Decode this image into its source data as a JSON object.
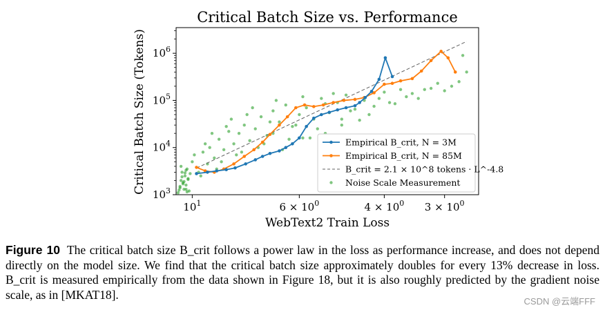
{
  "chart_data": {
    "type": "scatter",
    "title": "Critical Batch Size vs. Performance",
    "xlabel": "WebText2 Train Loss",
    "ylabel": "Critical Batch Size (Tokens)",
    "x_scale": "reciprocal-log",
    "y_scale": "log",
    "xlim": [
      10.8,
      2.55
    ],
    "ylim": [
      1000,
      3500000
    ],
    "x_ticks": [
      {
        "value": 10,
        "label": "10^1"
      },
      {
        "value": 6,
        "label": "6 × 10^0"
      },
      {
        "value": 4,
        "label": "4 × 10^0"
      },
      {
        "value": 3,
        "label": "3 × 10^0"
      }
    ],
    "y_ticks": [
      {
        "value": 1000,
        "label": "10^3"
      },
      {
        "value": 10000,
        "label": "10^4"
      },
      {
        "value": 100000,
        "label": "10^5"
      },
      {
        "value": 1000000,
        "label": "10^6"
      }
    ],
    "grid": false,
    "legend_position": "lower-right",
    "series": [
      {
        "name": "Empirical B_crit, N = 3M",
        "style": "line-dots",
        "color": "#1f77b4",
        "x": [
          9.8,
          9.3,
          8.9,
          8.5,
          8.15,
          7.75,
          7.4,
          7.15,
          6.9,
          6.6,
          6.4,
          6.2,
          6.0,
          5.8,
          5.6,
          5.4,
          5.2,
          5.0,
          4.8,
          4.6,
          4.5,
          4.38,
          4.25,
          4.1,
          3.98,
          3.85
        ],
        "y": [
          2800,
          3000,
          3200,
          3400,
          3700,
          4500,
          5500,
          6500,
          7500,
          8500,
          10000,
          12000,
          16000,
          28000,
          42000,
          50000,
          56000,
          63000,
          70000,
          77000,
          90000,
          115000,
          155000,
          280000,
          800000,
          320000
        ]
      },
      {
        "name": "Empirical B_crit, N = 85M",
        "style": "line-dots",
        "color": "#ff7f0e",
        "x": [
          9.8,
          9.4,
          9.0,
          8.6,
          8.2,
          7.8,
          7.45,
          7.15,
          6.9,
          6.6,
          6.35,
          6.1,
          5.85,
          5.6,
          5.35,
          5.1,
          4.85,
          4.6,
          4.4,
          4.2,
          4.0,
          3.85,
          3.7,
          3.5,
          3.35,
          3.2,
          3.05,
          2.95,
          2.85
        ],
        "y": [
          3800,
          3200,
          3000,
          3500,
          4500,
          6500,
          9000,
          13000,
          19000,
          30000,
          45000,
          70000,
          80000,
          74000,
          80000,
          90000,
          100000,
          105000,
          115000,
          145000,
          220000,
          230000,
          260000,
          290000,
          420000,
          700000,
          1100000,
          800000,
          400000
        ]
      },
      {
        "name": "B_crit = 2.1 × 10^8 tokens · L^-4.8",
        "style": "dashed",
        "color": "#606060",
        "fit": {
          "coefficient": 210000000,
          "exponent": -4.8
        }
      },
      {
        "name": "Noise Scale Measurement",
        "style": "scatter",
        "color": "#2ca02c",
        "x": [
          10.7,
          10.6,
          10.55,
          10.5,
          10.45,
          10.4,
          10.35,
          10.3,
          10.25,
          10.2,
          10.15,
          10.1,
          10.6,
          10.5,
          10.4,
          10.3,
          10.2,
          10.55,
          10.45,
          10.35,
          10.25,
          10.65,
          10.3,
          10.0,
          9.9,
          9.7,
          9.5,
          9.3,
          9.2,
          9.0,
          8.8,
          8.6,
          8.4,
          8.2,
          8.0,
          7.8,
          7.6,
          7.4,
          7.2,
          7.0,
          6.8,
          6.6,
          6.4,
          6.2,
          6.0,
          5.8,
          5.6,
          5.4,
          5.2,
          5.0,
          4.8,
          4.6,
          4.4,
          4.2,
          4.0,
          3.8,
          3.6,
          3.4,
          3.2,
          3.0,
          2.9,
          2.8,
          2.7,
          9.6,
          9.1,
          8.7,
          8.3,
          7.9,
          7.5,
          7.1,
          6.7,
          6.3,
          5.9,
          5.5,
          5.1,
          4.7,
          4.3,
          3.9,
          3.5,
          3.1,
          9.4,
          8.9,
          8.5,
          8.1,
          7.7,
          7.3,
          6.9,
          6.5,
          6.1,
          5.7,
          5.3,
          4.9,
          4.5,
          4.1,
          3.7,
          3.3,
          2.75,
          6.8,
          5.9,
          5.3,
          4.9
        ],
        "y": [
          1100,
          1400,
          2000,
          3000,
          1800,
          1300,
          2500,
          1600,
          3500,
          2200,
          1200,
          2800,
          1500,
          2400,
          1900,
          1300,
          2100,
          4000,
          1700,
          2900,
          1150,
          1250,
          3300,
          5000,
          7000,
          3000,
          8000,
          4500,
          10000,
          6000,
          15000,
          9000,
          22000,
          12000,
          20000,
          30000,
          14000,
          25000,
          45000,
          18000,
          60000,
          35000,
          80000,
          28000,
          50000,
          70000,
          40000,
          110000,
          55000,
          90000,
          130000,
          65000,
          100000,
          75000,
          150000,
          85000,
          120000,
          110000,
          180000,
          160000,
          200000,
          250000,
          400000,
          2500,
          20000,
          5000,
          40000,
          8000,
          70000,
          12000,
          100000,
          15000,
          120000,
          25000,
          140000,
          60000,
          50000,
          90000,
          140000,
          230000,
          12000,
          3500,
          28000,
          7000,
          50000,
          10000,
          35000,
          9000,
          30000,
          16000,
          85000,
          40000,
          38000,
          110000,
          170000,
          170000,
          900000,
          20000,
          16000,
          20000,
          30000
        ]
      }
    ]
  },
  "caption": {
    "label": "Figure 10",
    "text": "The critical batch size B_crit follows a power law in the loss as performance increase, and does not depend directly on the model size. We find that the critical batch size approximately doubles for every 13% decrease in loss. B_crit is measured empirically from the data shown in Figure 18, but it is also roughly predicted by the gradient noise scale, as in [MKAT18]."
  },
  "watermark": "CSDN @云端FFF"
}
